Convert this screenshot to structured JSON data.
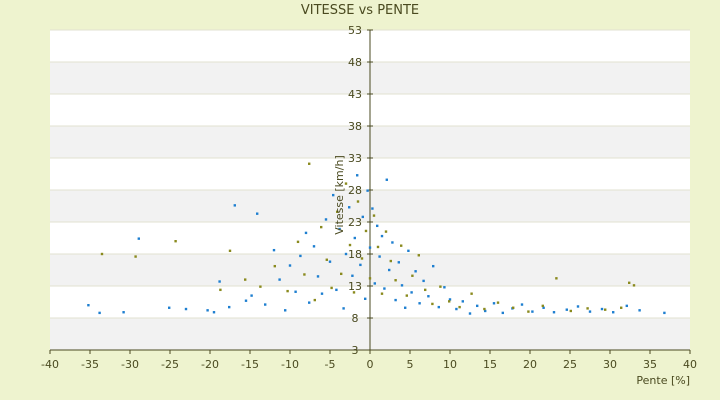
{
  "chart_data": {
    "type": "scatter",
    "title": "VITESSE vs PENTE",
    "xlabel": "Pente [%]",
    "ylabel": "Vitesse [km/h]",
    "xlim": [
      -40,
      40
    ],
    "ylim": [
      3,
      53
    ],
    "x_ticks": [
      "-40",
      "-35",
      "-30",
      "-25",
      "-20",
      "-15",
      "-10",
      "-5",
      "0",
      "5",
      "10",
      "15",
      "20",
      "25",
      "30",
      "35",
      "40"
    ],
    "y_ticks": [
      "3",
      "8",
      "13",
      "18",
      "23",
      "28",
      "33",
      "38",
      "43",
      "48",
      "53"
    ],
    "grid": "horizontal bands",
    "colors": {
      "background": "#eef3cf",
      "band_light": "#ffffff",
      "band_dark": "#f2f2f2",
      "axis": "#4a4a20",
      "series_1": "#1e7fd0",
      "series_2": "#8a8a1e"
    },
    "series": [
      {
        "values": [
          [
            -35.2,
            10.0
          ],
          [
            -33.8,
            8.8
          ],
          [
            -30.8,
            8.9
          ],
          [
            -28.9,
            20.4
          ],
          [
            -25.1,
            9.6
          ],
          [
            -23.0,
            9.4
          ],
          [
            -20.3,
            9.2
          ],
          [
            -19.5,
            8.9
          ],
          [
            -18.8,
            13.7
          ],
          [
            -17.6,
            9.7
          ],
          [
            -16.9,
            25.6
          ],
          [
            -15.5,
            10.7
          ],
          [
            -14.8,
            11.5
          ],
          [
            -14.1,
            24.3
          ],
          [
            -13.1,
            10.1
          ],
          [
            -12.0,
            18.6
          ],
          [
            -11.3,
            14.0
          ],
          [
            -10.6,
            9.2
          ],
          [
            -10.0,
            16.2
          ],
          [
            -9.3,
            12.1
          ],
          [
            -8.7,
            17.7
          ],
          [
            -8.0,
            21.3
          ],
          [
            -7.6,
            10.4
          ],
          [
            -7.0,
            19.2
          ],
          [
            -6.5,
            14.5
          ],
          [
            -6.0,
            11.8
          ],
          [
            -5.5,
            23.4
          ],
          [
            -5.0,
            16.8
          ],
          [
            -4.6,
            27.2
          ],
          [
            -4.2,
            12.4
          ],
          [
            -3.8,
            21.9
          ],
          [
            -3.3,
            9.5
          ],
          [
            -3.0,
            18.0
          ],
          [
            -2.6,
            25.3
          ],
          [
            -2.2,
            14.6
          ],
          [
            -1.9,
            20.5
          ],
          [
            -1.6,
            30.3
          ],
          [
            -1.2,
            16.3
          ],
          [
            -0.9,
            23.8
          ],
          [
            -0.6,
            11.0
          ],
          [
            -0.3,
            27.9
          ],
          [
            0.0,
            19.0
          ],
          [
            0.3,
            25.1
          ],
          [
            0.6,
            13.4
          ],
          [
            0.9,
            22.4
          ],
          [
            1.2,
            17.6
          ],
          [
            1.5,
            20.8
          ],
          [
            1.8,
            12.6
          ],
          [
            2.1,
            29.6
          ],
          [
            2.4,
            15.5
          ],
          [
            2.8,
            19.8
          ],
          [
            3.2,
            10.8
          ],
          [
            3.6,
            16.7
          ],
          [
            4.0,
            13.1
          ],
          [
            4.4,
            9.6
          ],
          [
            4.8,
            18.5
          ],
          [
            5.2,
            12.0
          ],
          [
            5.7,
            15.3
          ],
          [
            6.2,
            10.3
          ],
          [
            6.7,
            13.8
          ],
          [
            7.3,
            11.4
          ],
          [
            7.9,
            16.1
          ],
          [
            8.6,
            9.7
          ],
          [
            9.3,
            12.8
          ],
          [
            10.0,
            10.9
          ],
          [
            10.8,
            9.4
          ],
          [
            11.6,
            10.6
          ],
          [
            12.5,
            8.7
          ],
          [
            13.4,
            9.9
          ],
          [
            14.4,
            9.1
          ],
          [
            15.5,
            10.3
          ],
          [
            16.6,
            8.8
          ],
          [
            17.8,
            9.5
          ],
          [
            19.0,
            10.1
          ],
          [
            20.3,
            9.0
          ],
          [
            21.7,
            9.6
          ],
          [
            23.0,
            8.9
          ],
          [
            24.6,
            9.3
          ],
          [
            26.0,
            9.8
          ],
          [
            27.5,
            9.0
          ],
          [
            29.0,
            9.4
          ],
          [
            30.4,
            8.9
          ],
          [
            32.1,
            9.9
          ],
          [
            33.7,
            9.2
          ],
          [
            36.8,
            8.8
          ]
        ]
      },
      {
        "values": [
          [
            -33.5,
            18.0
          ],
          [
            -29.3,
            17.6
          ],
          [
            -24.3,
            20.0
          ],
          [
            -18.7,
            12.4
          ],
          [
            -17.5,
            18.5
          ],
          [
            -15.6,
            14.0
          ],
          [
            -13.7,
            12.9
          ],
          [
            -11.9,
            16.1
          ],
          [
            -10.3,
            12.2
          ],
          [
            -9.0,
            19.9
          ],
          [
            -8.2,
            14.8
          ],
          [
            -7.6,
            32.1
          ],
          [
            -6.9,
            10.8
          ],
          [
            -6.1,
            22.2
          ],
          [
            -5.4,
            17.1
          ],
          [
            -4.8,
            12.7
          ],
          [
            -4.1,
            24.6
          ],
          [
            -3.6,
            14.9
          ],
          [
            -3.0,
            29.0
          ],
          [
            -2.5,
            19.4
          ],
          [
            -2.0,
            12.0
          ],
          [
            -1.5,
            26.2
          ],
          [
            -1.0,
            17.3
          ],
          [
            -0.5,
            21.6
          ],
          [
            0.0,
            14.2
          ],
          [
            0.5,
            24.0
          ],
          [
            1.0,
            19.1
          ],
          [
            1.5,
            11.8
          ],
          [
            2.0,
            21.5
          ],
          [
            2.6,
            16.9
          ],
          [
            3.2,
            13.9
          ],
          [
            3.9,
            19.3
          ],
          [
            4.6,
            11.5
          ],
          [
            5.3,
            14.6
          ],
          [
            6.1,
            17.8
          ],
          [
            6.9,
            12.4
          ],
          [
            7.8,
            10.2
          ],
          [
            8.8,
            12.9
          ],
          [
            9.9,
            10.6
          ],
          [
            11.2,
            9.7
          ],
          [
            12.7,
            11.8
          ],
          [
            14.3,
            9.4
          ],
          [
            16.0,
            10.4
          ],
          [
            17.9,
            9.6
          ],
          [
            19.8,
            9.0
          ],
          [
            21.6,
            9.9
          ],
          [
            23.3,
            14.2
          ],
          [
            25.1,
            9.1
          ],
          [
            27.2,
            9.5
          ],
          [
            29.4,
            9.3
          ],
          [
            31.4,
            9.6
          ],
          [
            32.4,
            13.5
          ],
          [
            33.0,
            13.1
          ]
        ]
      }
    ]
  }
}
